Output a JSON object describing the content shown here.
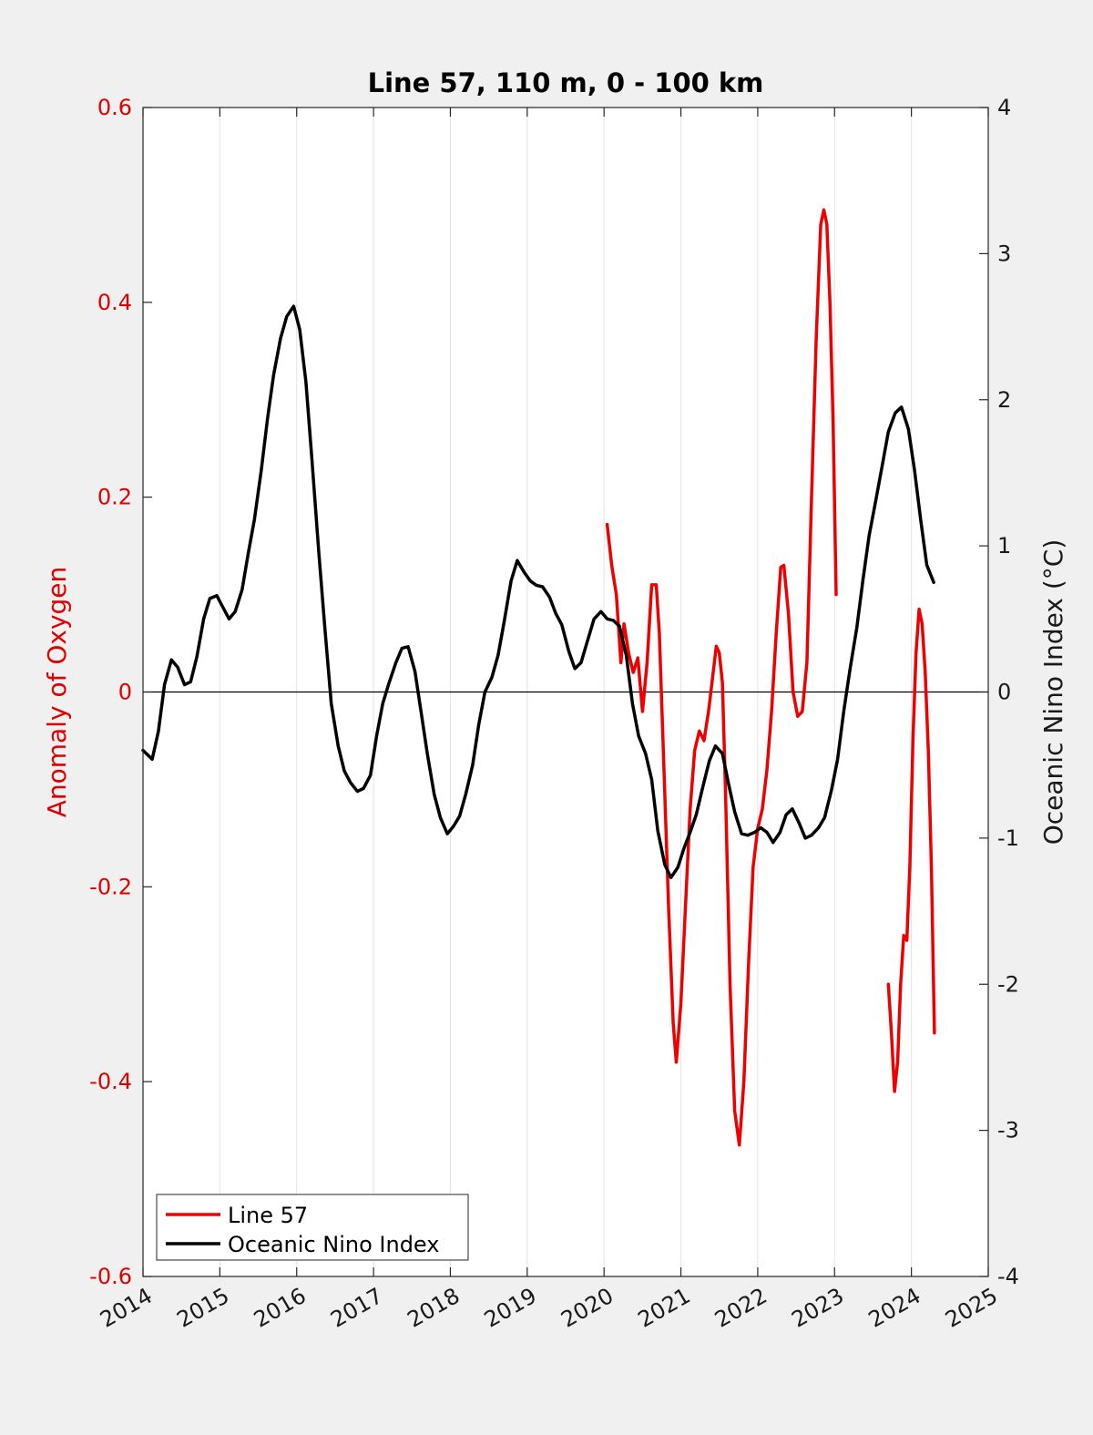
{
  "chart_data": {
    "type": "line",
    "title": "Line 57, 110 m, 0 - 100 km",
    "xlabel": "",
    "xlim": [
      2014,
      2025
    ],
    "xticks": [
      "2014",
      "2015",
      "2016",
      "2017",
      "2018",
      "2019",
      "2020",
      "2021",
      "2022",
      "2023",
      "2024",
      "2025"
    ],
    "y_left": {
      "label": "Anomaly of Oxygen",
      "lim": [
        -0.6,
        0.6
      ],
      "ticks": [
        "0.6",
        "0.4",
        "0.2",
        "0",
        "-0.2",
        "-0.4",
        "-0.6"
      ],
      "color": "#e00000"
    },
    "y_right": {
      "label": "Oceanic Nino Index (°C)",
      "lim": [
        -4,
        4
      ],
      "ticks": [
        "4",
        "3",
        "2",
        "1",
        "0",
        "-1",
        "-2",
        "-3",
        "-4"
      ],
      "color": "#1a1a1a"
    },
    "grid": "vertical",
    "zero_line": true,
    "legend": {
      "placement": "bottom-left",
      "entries": [
        {
          "name": "Line 57",
          "color": "#ee0000"
        },
        {
          "name": "Oceanic Nino Index",
          "color": "#000000"
        }
      ]
    },
    "series": [
      {
        "name": "Line 57",
        "axis": "left",
        "color": "#ee0000",
        "segments": [
          [
            [
              2020.04,
              0.172
            ],
            [
              2020.1,
              0.13
            ],
            [
              2020.16,
              0.1
            ],
            [
              2020.22,
              0.03
            ],
            [
              2020.26,
              0.07
            ],
            [
              2020.32,
              0.04
            ],
            [
              2020.38,
              0.02
            ],
            [
              2020.44,
              0.035
            ],
            [
              2020.5,
              -0.02
            ],
            [
              2020.56,
              0.03
            ],
            [
              2020.62,
              0.11
            ],
            [
              2020.68,
              0.11
            ],
            [
              2020.72,
              0.06
            ],
            [
              2020.78,
              -0.08
            ],
            [
              2020.84,
              -0.22
            ],
            [
              2020.9,
              -0.34
            ],
            [
              2020.94,
              -0.38
            ],
            [
              2021.0,
              -0.32
            ],
            [
              2021.06,
              -0.22
            ],
            [
              2021.12,
              -0.12
            ],
            [
              2021.18,
              -0.06
            ],
            [
              2021.24,
              -0.04
            ],
            [
              2021.3,
              -0.05
            ],
            [
              2021.36,
              -0.02
            ],
            [
              2021.42,
              0.02
            ],
            [
              2021.46,
              0.047
            ],
            [
              2021.5,
              0.04
            ],
            [
              2021.54,
              0.01
            ],
            [
              2021.58,
              -0.1
            ],
            [
              2021.64,
              -0.3
            ],
            [
              2021.7,
              -0.43
            ],
            [
              2021.76,
              -0.465
            ],
            [
              2021.82,
              -0.4
            ],
            [
              2021.88,
              -0.28
            ],
            [
              2021.94,
              -0.18
            ],
            [
              2022.0,
              -0.14
            ],
            [
              2022.06,
              -0.12
            ],
            [
              2022.12,
              -0.08
            ],
            [
              2022.18,
              -0.02
            ],
            [
              2022.24,
              0.06
            ],
            [
              2022.3,
              0.128
            ],
            [
              2022.34,
              0.13
            ],
            [
              2022.4,
              0.08
            ],
            [
              2022.46,
              0.0
            ],
            [
              2022.52,
              -0.025
            ],
            [
              2022.58,
              -0.02
            ],
            [
              2022.64,
              0.03
            ],
            [
              2022.7,
              0.2
            ],
            [
              2022.76,
              0.36
            ],
            [
              2022.82,
              0.48
            ],
            [
              2022.86,
              0.495
            ],
            [
              2022.9,
              0.48
            ],
            [
              2022.94,
              0.4
            ],
            [
              2022.98,
              0.28
            ],
            [
              2023.02,
              0.1
            ]
          ],
          [
            [
              2023.7,
              -0.3
            ],
            [
              2023.74,
              -0.35
            ],
            [
              2023.78,
              -0.41
            ],
            [
              2023.82,
              -0.38
            ],
            [
              2023.86,
              -0.3
            ],
            [
              2023.9,
              -0.25
            ],
            [
              2023.94,
              -0.255
            ],
            [
              2023.98,
              -0.18
            ],
            [
              2024.02,
              -0.05
            ],
            [
              2024.06,
              0.04
            ],
            [
              2024.1,
              0.085
            ],
            [
              2024.14,
              0.07
            ],
            [
              2024.18,
              0.02
            ],
            [
              2024.22,
              -0.06
            ],
            [
              2024.26,
              -0.18
            ],
            [
              2024.3,
              -0.35
            ]
          ]
        ]
      },
      {
        "name": "Oceanic Nino Index",
        "axis": "right",
        "color": "#000000",
        "points": [
          [
            2014.0,
            -0.4
          ],
          [
            2014.04,
            -0.42
          ],
          [
            2014.12,
            -0.46
          ],
          [
            2014.2,
            -0.27
          ],
          [
            2014.28,
            0.05
          ],
          [
            2014.37,
            0.22
          ],
          [
            2014.45,
            0.17
          ],
          [
            2014.54,
            0.05
          ],
          [
            2014.62,
            0.07
          ],
          [
            2014.7,
            0.24
          ],
          [
            2014.79,
            0.5
          ],
          [
            2014.87,
            0.64
          ],
          [
            2014.96,
            0.66
          ],
          [
            2015.04,
            0.58
          ],
          [
            2015.12,
            0.5
          ],
          [
            2015.2,
            0.55
          ],
          [
            2015.29,
            0.7
          ],
          [
            2015.37,
            0.95
          ],
          [
            2015.45,
            1.18
          ],
          [
            2015.54,
            1.52
          ],
          [
            2015.62,
            1.87
          ],
          [
            2015.7,
            2.17
          ],
          [
            2015.79,
            2.42
          ],
          [
            2015.87,
            2.57
          ],
          [
            2015.96,
            2.64
          ],
          [
            2016.04,
            2.48
          ],
          [
            2016.12,
            2.12
          ],
          [
            2016.2,
            1.58
          ],
          [
            2016.29,
            0.94
          ],
          [
            2016.37,
            0.42
          ],
          [
            2016.45,
            -0.08
          ],
          [
            2016.54,
            -0.37
          ],
          [
            2016.62,
            -0.54
          ],
          [
            2016.7,
            -0.62
          ],
          [
            2016.79,
            -0.68
          ],
          [
            2016.87,
            -0.66
          ],
          [
            2016.96,
            -0.57
          ],
          [
            2017.04,
            -0.3
          ],
          [
            2017.12,
            -0.08
          ],
          [
            2017.2,
            0.06
          ],
          [
            2017.29,
            0.2
          ],
          [
            2017.37,
            0.3
          ],
          [
            2017.45,
            0.31
          ],
          [
            2017.54,
            0.14
          ],
          [
            2017.62,
            -0.14
          ],
          [
            2017.7,
            -0.42
          ],
          [
            2017.79,
            -0.7
          ],
          [
            2017.87,
            -0.86
          ],
          [
            2017.96,
            -0.97
          ],
          [
            2018.04,
            -0.92
          ],
          [
            2018.12,
            -0.85
          ],
          [
            2018.2,
            -0.7
          ],
          [
            2018.29,
            -0.5
          ],
          [
            2018.37,
            -0.22
          ],
          [
            2018.45,
            0.0
          ],
          [
            2018.54,
            0.1
          ],
          [
            2018.62,
            0.25
          ],
          [
            2018.7,
            0.48
          ],
          [
            2018.79,
            0.76
          ],
          [
            2018.87,
            0.9
          ],
          [
            2018.96,
            0.82
          ],
          [
            2019.04,
            0.76
          ],
          [
            2019.12,
            0.73
          ],
          [
            2019.2,
            0.72
          ],
          [
            2019.29,
            0.65
          ],
          [
            2019.37,
            0.54
          ],
          [
            2019.45,
            0.46
          ],
          [
            2019.54,
            0.28
          ],
          [
            2019.62,
            0.16
          ],
          [
            2019.7,
            0.2
          ],
          [
            2019.79,
            0.36
          ],
          [
            2019.87,
            0.5
          ],
          [
            2019.96,
            0.55
          ],
          [
            2020.04,
            0.5
          ],
          [
            2020.12,
            0.49
          ],
          [
            2020.2,
            0.45
          ],
          [
            2020.29,
            0.25
          ],
          [
            2020.37,
            -0.08
          ],
          [
            2020.45,
            -0.3
          ],
          [
            2020.54,
            -0.42
          ],
          [
            2020.62,
            -0.6
          ],
          [
            2020.7,
            -0.95
          ],
          [
            2020.79,
            -1.18
          ],
          [
            2020.87,
            -1.27
          ],
          [
            2020.96,
            -1.2
          ],
          [
            2021.04,
            -1.07
          ],
          [
            2021.12,
            -0.96
          ],
          [
            2021.2,
            -0.84
          ],
          [
            2021.29,
            -0.64
          ],
          [
            2021.37,
            -0.47
          ],
          [
            2021.45,
            -0.37
          ],
          [
            2021.54,
            -0.42
          ],
          [
            2021.62,
            -0.63
          ],
          [
            2021.7,
            -0.82
          ],
          [
            2021.79,
            -0.97
          ],
          [
            2021.87,
            -0.98
          ],
          [
            2021.96,
            -0.96
          ],
          [
            2022.04,
            -0.93
          ],
          [
            2022.12,
            -0.96
          ],
          [
            2022.2,
            -1.03
          ],
          [
            2022.29,
            -0.96
          ],
          [
            2022.37,
            -0.84
          ],
          [
            2022.45,
            -0.8
          ],
          [
            2022.54,
            -0.9
          ],
          [
            2022.62,
            -1.0
          ],
          [
            2022.7,
            -0.98
          ],
          [
            2022.79,
            -0.93
          ],
          [
            2022.87,
            -0.86
          ],
          [
            2022.96,
            -0.67
          ],
          [
            2023.04,
            -0.46
          ],
          [
            2023.12,
            -0.13
          ],
          [
            2023.2,
            0.15
          ],
          [
            2023.29,
            0.44
          ],
          [
            2023.37,
            0.77
          ],
          [
            2023.45,
            1.07
          ],
          [
            2023.54,
            1.32
          ],
          [
            2023.62,
            1.55
          ],
          [
            2023.7,
            1.78
          ],
          [
            2023.79,
            1.91
          ],
          [
            2023.87,
            1.95
          ],
          [
            2023.96,
            1.8
          ],
          [
            2024.04,
            1.52
          ],
          [
            2024.12,
            1.18
          ],
          [
            2024.2,
            0.87
          ],
          [
            2024.29,
            0.75
          ]
        ]
      }
    ]
  }
}
